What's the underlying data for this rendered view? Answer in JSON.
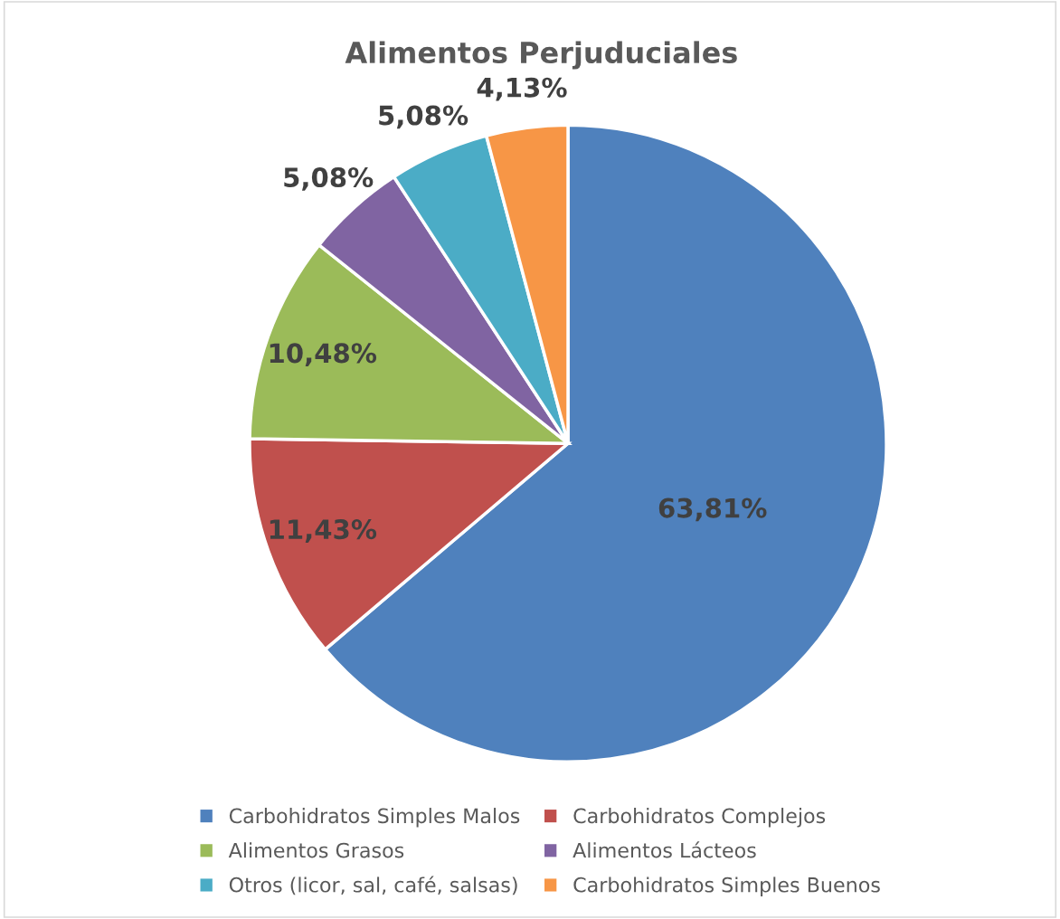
{
  "chart_data": {
    "type": "pie",
    "title": "Alimentos Perjuduciales",
    "categories": [
      "Carbohidratos Simples Malos",
      "Carbohidratos Complejos",
      "Alimentos Grasos",
      "Alimentos Lácteos",
      "Otros (licor, sal, café, salsas)",
      "Carbohidratos Simples Buenos"
    ],
    "values": [
      63.81,
      11.43,
      10.48,
      5.08,
      5.08,
      4.13
    ],
    "value_labels": [
      "63,81%",
      "11,43%",
      "10,48%",
      "5,08%",
      "5,08%",
      "4,13%"
    ],
    "colors": [
      "#4f81bd",
      "#c0504d",
      "#9bbb59",
      "#8064a2",
      "#4bacc6",
      "#f79646"
    ],
    "legend": "bottom"
  }
}
